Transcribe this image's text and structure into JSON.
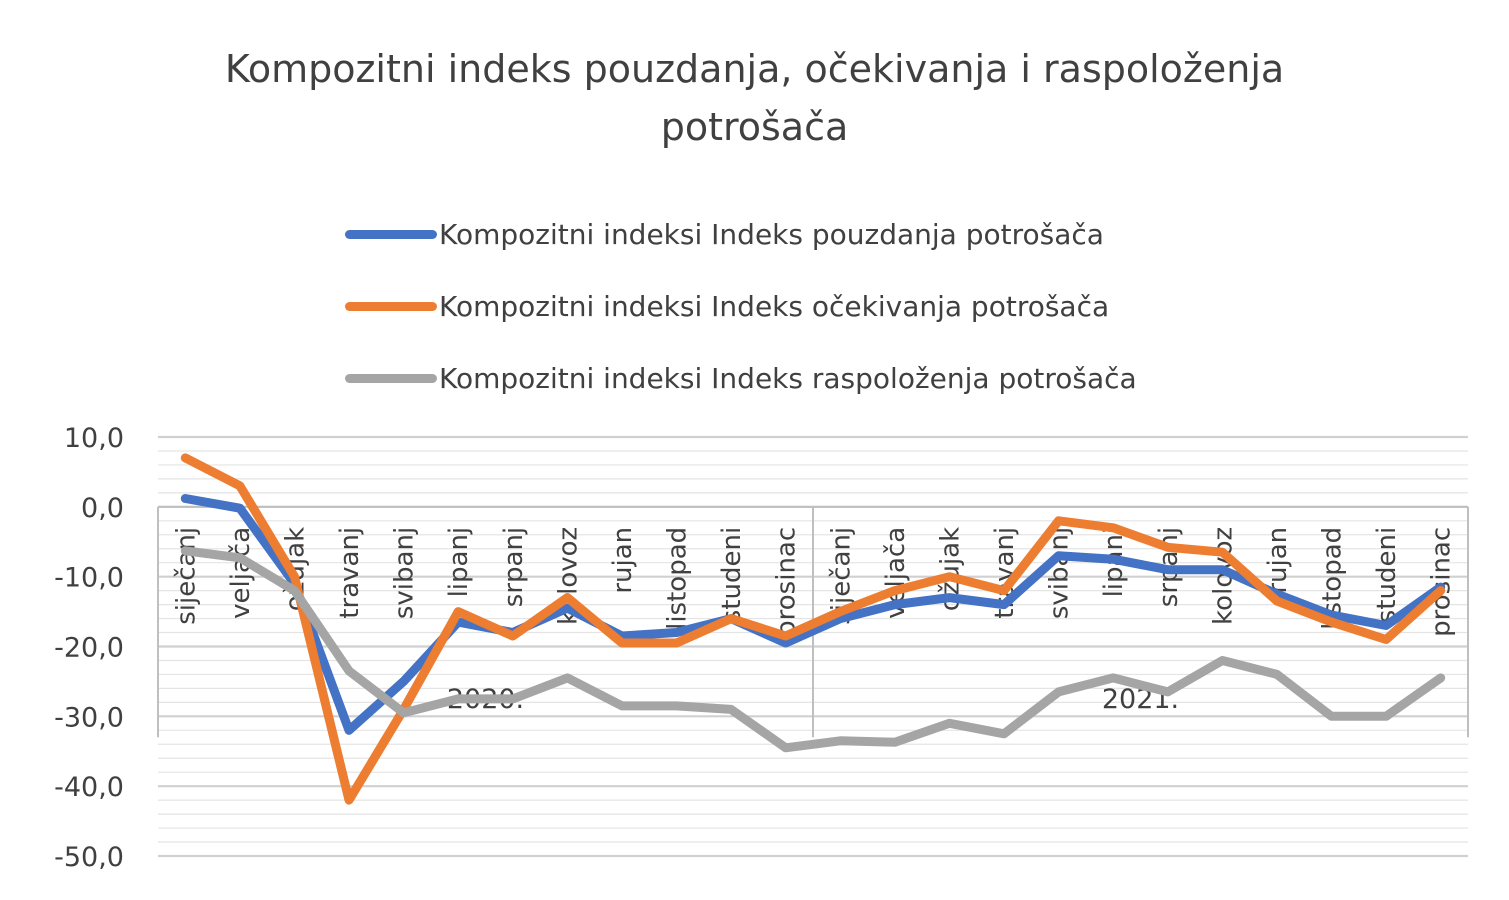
{
  "chart_data": {
    "type": "line",
    "title_lines": [
      "Kompozitni indeks pouzdanja, očekivanja i raspoloženja",
      "potrošača"
    ],
    "xlabel": "",
    "ylabel": "",
    "ylim": [
      -50,
      10
    ],
    "yticks": [
      10,
      0,
      -10,
      -20,
      -30,
      -40,
      -50
    ],
    "ytick_labels": [
      "10,0",
      "0,0",
      "-10,0",
      "-20,0",
      "-30,0",
      "-40,0",
      "-50,0"
    ],
    "grid": true,
    "legend_position": "top",
    "categories": [
      "siječanj",
      "veljača",
      "ožujak",
      "travanj",
      "svibanj",
      "lipanj",
      "srpanj",
      "kolovoz",
      "rujan",
      "listopad",
      "studeni",
      "prosinac",
      "siječanj",
      "veljača",
      "ožujak",
      "travanj",
      "svibanj",
      "lipanj",
      "srpanj",
      "kolovoz",
      "rujan",
      "listopad",
      "studeni",
      "prosinac"
    ],
    "groups": [
      {
        "label": "2020.",
        "start": 0,
        "end": 11
      },
      {
        "label": "2021.",
        "start": 12,
        "end": 23
      }
    ],
    "series": [
      {
        "name": "Kompozitni indeksi Indeks pouzdanja potrošača",
        "color": "#4472C4",
        "values": [
          1.2,
          -0.2,
          -11,
          -32,
          -25,
          -16.5,
          -18,
          -14.5,
          -18.5,
          -18,
          -16,
          -19.5,
          -16,
          -14,
          -13,
          -14,
          -7,
          -7.5,
          -9,
          -9,
          -12.5,
          -15.5,
          -17,
          -11.5
        ]
      },
      {
        "name": "Kompozitni indeksi Indeks očekivanja potrošača",
        "color": "#ED7D31",
        "values": [
          7,
          3,
          -10,
          -42,
          -29,
          -15,
          -18.5,
          -13,
          -19.5,
          -19.5,
          -16,
          -18.5,
          -15,
          -12,
          -10,
          -12,
          -2,
          -3,
          -5.8,
          -6.5,
          -13.5,
          -16.5,
          -19,
          -12
        ]
      },
      {
        "name": "Kompozitni indeksi Indeks raspoloženja potrošača",
        "color": "#A5A5A5",
        "values": [
          -6.3,
          -7.3,
          -12,
          -23.5,
          -29.5,
          -27.5,
          -27.5,
          -24.5,
          -28.5,
          -28.5,
          -29,
          -34.5,
          -33.5,
          -33.7,
          -31,
          -32.5,
          -26.5,
          -24.5,
          -26.5,
          -22,
          -24,
          -30,
          -30,
          -24.5
        ]
      }
    ]
  }
}
